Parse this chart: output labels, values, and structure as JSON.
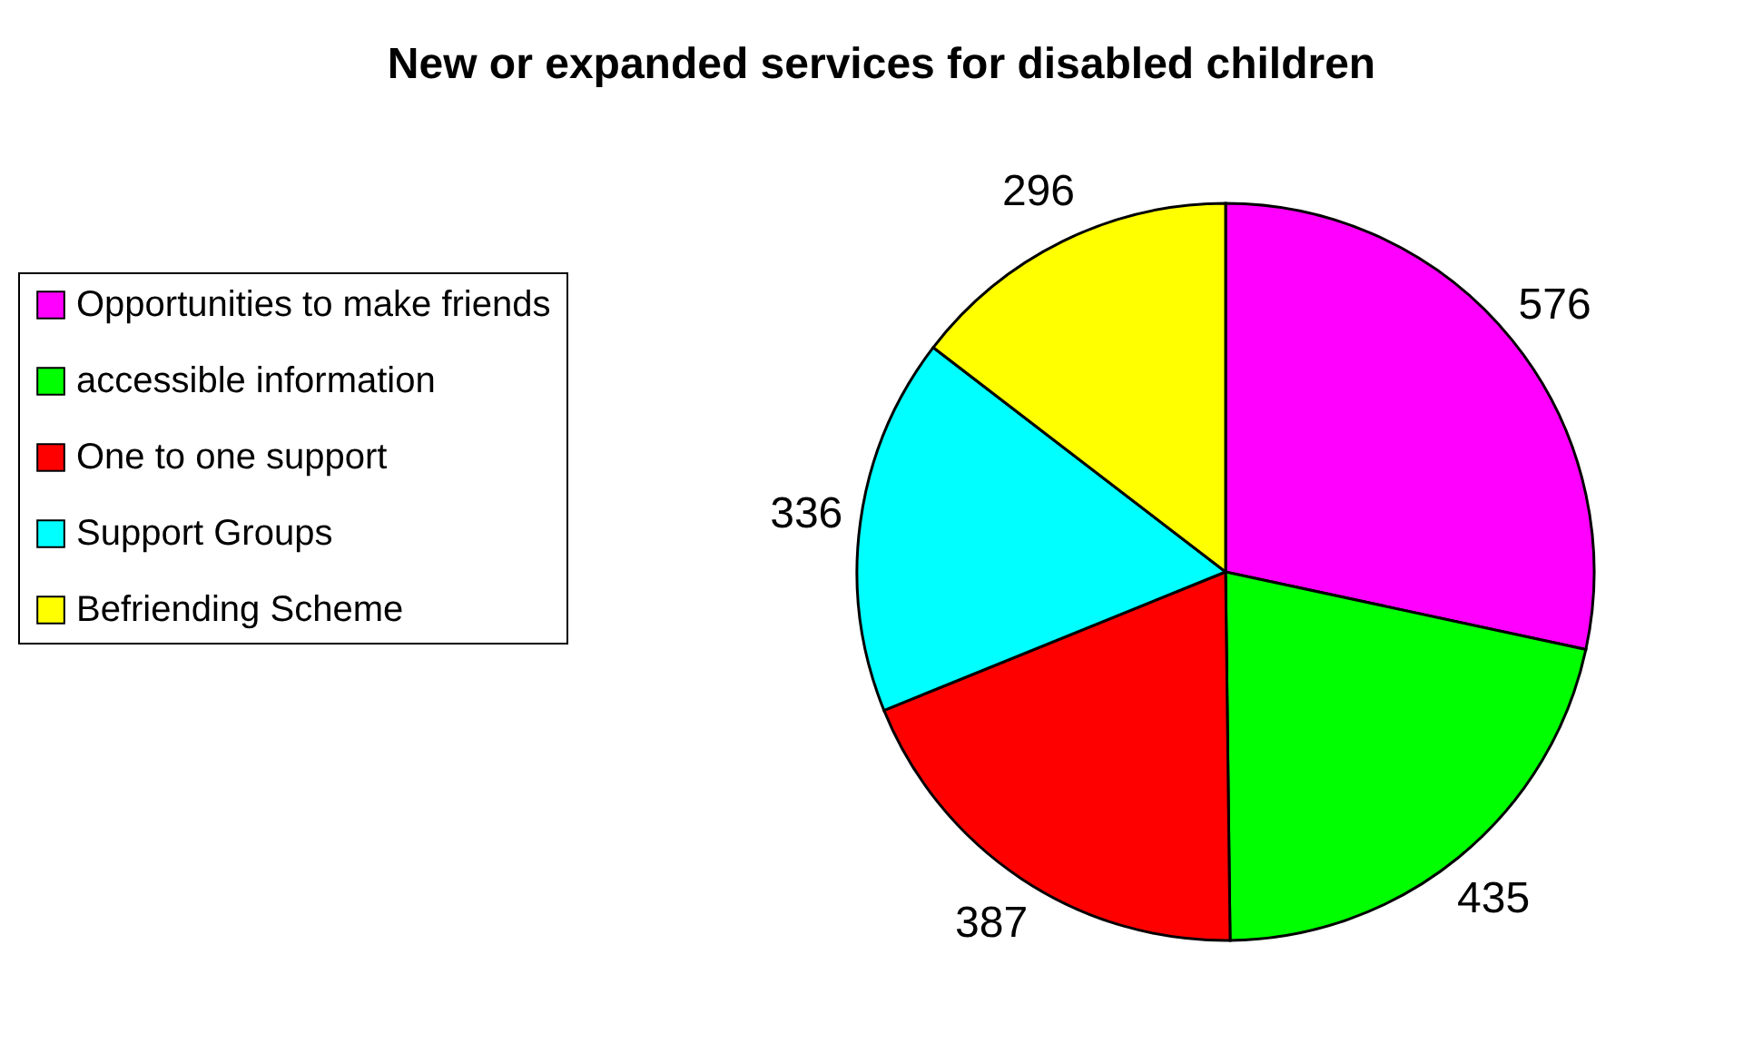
{
  "chart_data": {
    "type": "pie",
    "title": "New or expanded services for disabled children",
    "categories": [
      "Opportunities to make friends",
      "accessible information",
      "One to one support",
      "Support Groups",
      "Befriending Scheme"
    ],
    "values": [
      576,
      435,
      387,
      336,
      296
    ],
    "colors": [
      "#ff00ff",
      "#00ff00",
      "#ff0000",
      "#00ffff",
      "#ffff00"
    ],
    "data_labels": true,
    "legend": "left"
  }
}
